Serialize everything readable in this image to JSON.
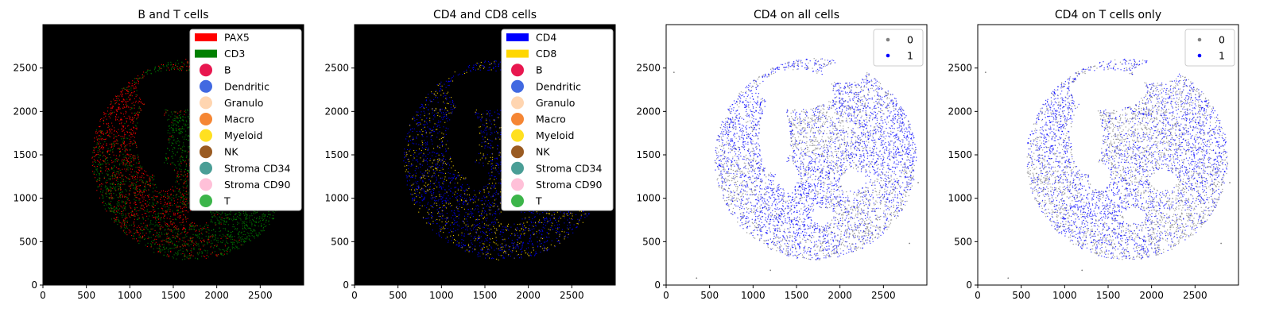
{
  "legend_types": {
    "marker_names": [
      "B",
      "Dendritic",
      "Granulo",
      "Macro",
      "Myeloid",
      "NK",
      "Stroma CD34",
      "Stroma CD90",
      "T"
    ],
    "marker_colors": [
      "#e8174f",
      "#4169e1",
      "#ffd5b0",
      "#f58634",
      "#ffe020",
      "#9a5b22",
      "#4a9e96",
      "#ffc0d8",
      "#3cb54a"
    ]
  },
  "chart_data": [
    {
      "type": "image",
      "title": "B and T cells",
      "xlim": [
        0,
        3000
      ],
      "ylim": [
        0,
        3000
      ],
      "xticks": [
        0,
        500,
        1000,
        1500,
        2000,
        2500
      ],
      "yticks": [
        0,
        500,
        1000,
        1500,
        2000,
        2500
      ],
      "background": "#000000",
      "legend": {
        "placement": "upper-right",
        "channels": [
          {
            "name": "PAX5",
            "color": "#ff0000"
          },
          {
            "name": "CD3",
            "color": "#008000"
          }
        ]
      }
    },
    {
      "type": "image",
      "title": "CD4 and CD8 cells",
      "xlim": [
        0,
        3000
      ],
      "ylim": [
        0,
        3000
      ],
      "xticks": [
        0,
        500,
        1000,
        1500,
        2000,
        2500
      ],
      "yticks": [
        0,
        500,
        1000,
        1500,
        2000,
        2500
      ],
      "background": "#000000",
      "legend": {
        "placement": "upper-right",
        "channels": [
          {
            "name": "CD4",
            "color": "#0000ff"
          },
          {
            "name": "CD8",
            "color": "#ffd700"
          }
        ]
      }
    },
    {
      "type": "scatter",
      "title": "CD4 on all cells",
      "xlim": [
        0,
        3000
      ],
      "ylim": [
        0,
        3000
      ],
      "xticks": [
        0,
        500,
        1000,
        1500,
        2000,
        2500
      ],
      "yticks": [
        0,
        500,
        1000,
        1500,
        2000,
        2500
      ],
      "legend": {
        "placement": "upper-right",
        "entries": [
          {
            "name": "0",
            "color": "#808080"
          },
          {
            "name": "1",
            "color": "#0000ff"
          }
        ]
      }
    },
    {
      "type": "scatter",
      "title": "CD4 on T cells only",
      "xlim": [
        0,
        3000
      ],
      "ylim": [
        0,
        3000
      ],
      "xticks": [
        0,
        500,
        1000,
        1500,
        2000,
        2500
      ],
      "yticks": [
        0,
        500,
        1000,
        1500,
        2000,
        2500
      ],
      "legend": {
        "placement": "upper-right",
        "entries": [
          {
            "name": "0",
            "color": "#808080"
          },
          {
            "name": "1",
            "color": "#0000ff"
          }
        ]
      }
    }
  ]
}
